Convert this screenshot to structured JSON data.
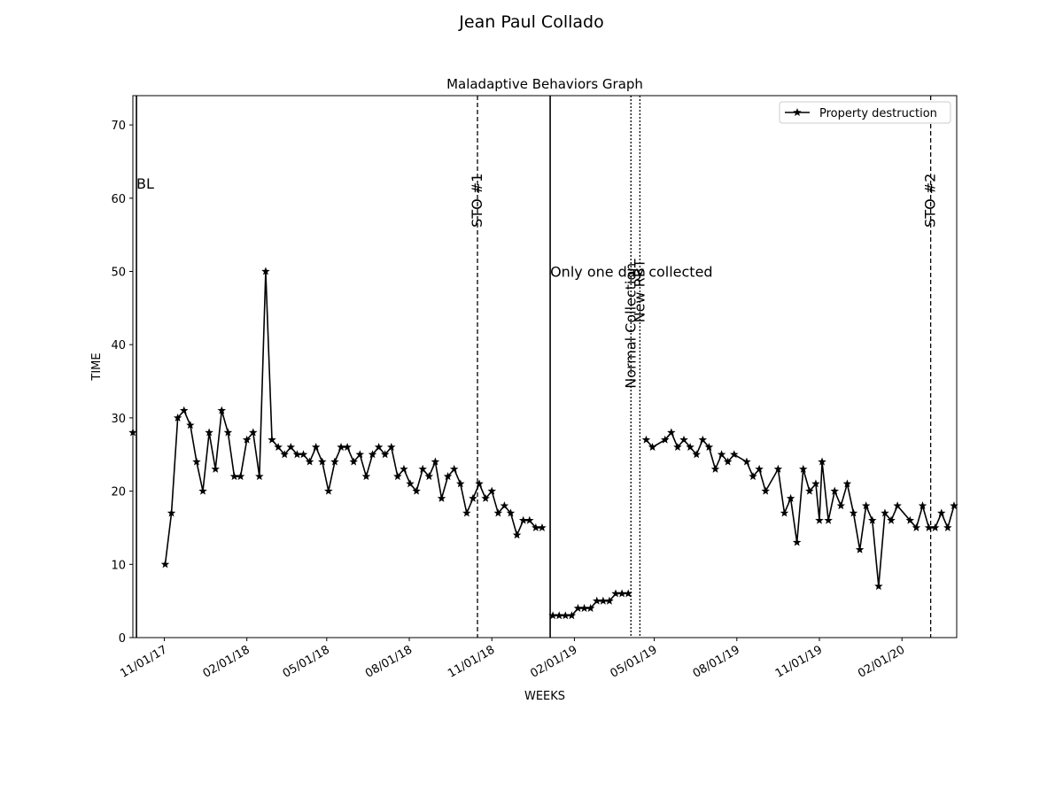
{
  "figure": {
    "suptitle": "Jean Paul  Collado"
  },
  "colors": {
    "series": "#000000",
    "background": "#ffffff",
    "legend_border": "#cccccc"
  },
  "chart_data": {
    "type": "line",
    "title": "Maladaptive Behaviors Graph",
    "xlabel": "WEEKS",
    "ylabel": "TIME",
    "ylim": [
      0,
      74
    ],
    "xlim": [
      "2017-09-27",
      "2020-04-02"
    ],
    "grid": false,
    "legend": {
      "placement": "top-right"
    },
    "x_ticks": [
      {
        "date": "2017-11-01",
        "label": "11/01/17"
      },
      {
        "date": "2018-02-01",
        "label": "02/01/18"
      },
      {
        "date": "2018-05-01",
        "label": "05/01/18"
      },
      {
        "date": "2018-08-01",
        "label": "08/01/18"
      },
      {
        "date": "2018-11-01",
        "label": "11/01/18"
      },
      {
        "date": "2019-02-01",
        "label": "02/01/19"
      },
      {
        "date": "2019-05-01",
        "label": "05/01/19"
      },
      {
        "date": "2019-08-01",
        "label": "08/01/19"
      },
      {
        "date": "2019-11-01",
        "label": "11/01/19"
      },
      {
        "date": "2020-02-01",
        "label": "02/01/20"
      }
    ],
    "y_ticks": [
      0,
      10,
      20,
      30,
      40,
      50,
      60,
      70
    ],
    "phase_lines": [
      {
        "date": "2017-10-01",
        "style": "solid",
        "label": "BL",
        "label_rotation": 0,
        "label_y": 62
      },
      {
        "date": "2018-10-16",
        "style": "dashed",
        "label": "STO #1",
        "label_rotation": 90,
        "label_y": 56
      },
      {
        "date": "2019-01-05",
        "style": "solid",
        "label": "Only one day collected",
        "label_rotation": 0,
        "label_y": 50
      },
      {
        "date": "2019-04-05",
        "style": "dotted",
        "label": "Normal Collection",
        "label_rotation": 90,
        "label_y": 34
      },
      {
        "date": "2019-04-15",
        "style": "dotted",
        "label": "New RBT",
        "label_rotation": 90,
        "label_y": 43
      },
      {
        "date": "2020-03-04",
        "style": "dashed",
        "label": "STO #2",
        "label_rotation": 90,
        "label_y": 56
      }
    ],
    "series": [
      {
        "name": "Property destruction",
        "segments": [
          [
            [
              "2017-09-27",
              28
            ]
          ],
          [
            [
              "2017-11-02",
              10
            ],
            [
              "2017-11-09",
              17
            ],
            [
              "2017-11-16",
              30
            ],
            [
              "2017-11-23",
              31
            ],
            [
              "2017-11-30",
              29
            ],
            [
              "2017-12-07",
              24
            ],
            [
              "2017-12-14",
              20
            ],
            [
              "2017-12-21",
              28
            ],
            [
              "2017-12-28",
              23
            ],
            [
              "2018-01-04",
              31
            ],
            [
              "2018-01-11",
              28
            ],
            [
              "2018-01-18",
              22
            ],
            [
              "2018-01-25",
              22
            ],
            [
              "2018-02-01",
              27
            ],
            [
              "2018-02-08",
              28
            ],
            [
              "2018-02-15",
              22
            ],
            [
              "2018-02-22",
              50
            ],
            [
              "2018-03-01",
              27
            ],
            [
              "2018-03-08",
              26
            ],
            [
              "2018-03-15",
              25
            ],
            [
              "2018-03-22",
              26
            ],
            [
              "2018-03-29",
              25
            ],
            [
              "2018-04-05",
              25
            ],
            [
              "2018-04-12",
              24
            ],
            [
              "2018-04-19",
              26
            ],
            [
              "2018-04-26",
              24
            ],
            [
              "2018-05-03",
              20
            ],
            [
              "2018-05-10",
              24
            ],
            [
              "2018-05-17",
              26
            ],
            [
              "2018-05-24",
              26
            ],
            [
              "2018-05-31",
              24
            ],
            [
              "2018-06-07",
              25
            ],
            [
              "2018-06-14",
              22
            ],
            [
              "2018-06-21",
              25
            ],
            [
              "2018-06-28",
              26
            ],
            [
              "2018-07-05",
              25
            ],
            [
              "2018-07-12",
              26
            ],
            [
              "2018-07-19",
              22
            ],
            [
              "2018-07-26",
              23
            ],
            [
              "2018-08-02",
              21
            ],
            [
              "2018-08-09",
              20
            ],
            [
              "2018-08-16",
              23
            ],
            [
              "2018-08-23",
              22
            ],
            [
              "2018-08-30",
              24
            ],
            [
              "2018-09-06",
              19
            ],
            [
              "2018-09-13",
              22
            ],
            [
              "2018-09-20",
              23
            ],
            [
              "2018-09-27",
              21
            ],
            [
              "2018-10-04",
              17
            ],
            [
              "2018-10-11",
              19
            ],
            [
              "2018-10-18",
              21
            ],
            [
              "2018-10-25",
              19
            ],
            [
              "2018-11-01",
              20
            ],
            [
              "2018-11-08",
              17
            ],
            [
              "2018-11-15",
              18
            ],
            [
              "2018-11-22",
              17
            ],
            [
              "2018-11-29",
              14
            ],
            [
              "2018-12-06",
              16
            ],
            [
              "2018-12-13",
              16
            ],
            [
              "2018-12-20",
              15
            ],
            [
              "2018-12-27",
              15
            ]
          ],
          [
            [
              "2019-01-08",
              3
            ],
            [
              "2019-01-15",
              3
            ],
            [
              "2019-01-22",
              3
            ],
            [
              "2019-01-29",
              3
            ],
            [
              "2019-02-05",
              4
            ],
            [
              "2019-02-12",
              4
            ],
            [
              "2019-02-19",
              4
            ],
            [
              "2019-02-26",
              5
            ],
            [
              "2019-03-05",
              5
            ],
            [
              "2019-03-12",
              5
            ],
            [
              "2019-03-19",
              6
            ],
            [
              "2019-03-26",
              6
            ],
            [
              "2019-04-02",
              6
            ]
          ],
          [
            [
              "2019-04-22",
              27
            ],
            [
              "2019-04-29",
              26
            ],
            [
              "2019-05-13",
              27
            ],
            [
              "2019-05-20",
              28
            ],
            [
              "2019-05-27",
              26
            ],
            [
              "2019-06-03",
              27
            ],
            [
              "2019-06-10",
              26
            ],
            [
              "2019-06-17",
              25
            ],
            [
              "2019-06-24",
              27
            ],
            [
              "2019-07-01",
              26
            ],
            [
              "2019-07-08",
              23
            ],
            [
              "2019-07-15",
              25
            ],
            [
              "2019-07-22",
              24
            ],
            [
              "2019-07-29",
              25
            ],
            [
              "2019-08-12",
              24
            ],
            [
              "2019-08-19",
              22
            ],
            [
              "2019-08-26",
              23
            ],
            [
              "2019-09-02",
              20
            ],
            [
              "2019-09-16",
              23
            ],
            [
              "2019-09-23",
              17
            ],
            [
              "2019-09-30",
              19
            ],
            [
              "2019-10-07",
              13
            ],
            [
              "2019-10-14",
              23
            ],
            [
              "2019-10-21",
              20
            ],
            [
              "2019-10-28",
              21
            ],
            [
              "2019-11-01",
              16
            ],
            [
              "2019-11-04",
              24
            ],
            [
              "2019-11-11",
              16
            ],
            [
              "2019-11-18",
              20
            ],
            [
              "2019-11-25",
              18
            ],
            [
              "2019-12-02",
              21
            ],
            [
              "2019-12-09",
              17
            ],
            [
              "2019-12-16",
              12
            ],
            [
              "2019-12-23",
              18
            ],
            [
              "2019-12-30",
              16
            ],
            [
              "2020-01-06",
              7
            ],
            [
              "2020-01-13",
              17
            ],
            [
              "2020-01-20",
              16
            ],
            [
              "2020-01-27",
              18
            ],
            [
              "2020-02-10",
              16
            ],
            [
              "2020-02-17",
              15
            ],
            [
              "2020-02-24",
              18
            ],
            [
              "2020-03-02",
              15
            ],
            [
              "2020-03-09",
              15
            ],
            [
              "2020-03-16",
              17
            ],
            [
              "2020-03-23",
              15
            ],
            [
              "2020-03-30",
              18
            ]
          ]
        ]
      }
    ]
  }
}
